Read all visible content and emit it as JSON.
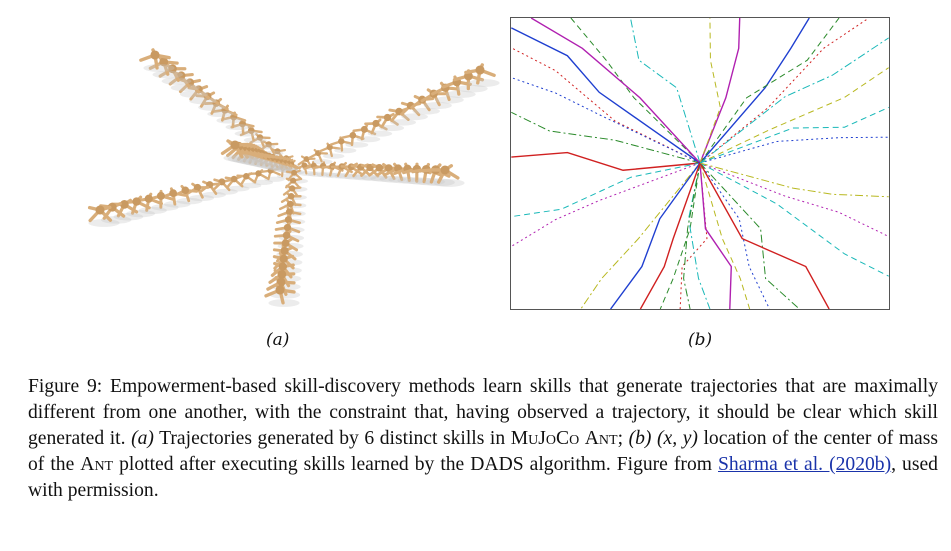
{
  "figure": {
    "label_a": "(a)",
    "label_b": "(b)",
    "caption": {
      "prefix": "Figure 9: Empowerment-based skill-discovery methods learn skills that generate trajectories that are maximally different from one another, with the constraint that, having observed a trajectory, it should be clear which skill generated it.",
      "part_a_label": "(a)",
      "part_a_text": "Trajectories generated by 6 distinct skills in",
      "mujoco": "MuJoCo",
      "ant": "Ant",
      "part_b_label": "(b)",
      "coord": "(x, y)",
      "part_b_text": "location of the center of mass of the",
      "ant2": "Ant",
      "part_b_rest": "plotted after executing skills learned by the DADS algorithm. Figure from",
      "citation": "Sharma et al. (2020b)",
      "suffix": ", used with permission."
    },
    "colors": {
      "ant_body": "#d9ae7a",
      "ant_shadow": "#c8c8c8",
      "traj": [
        "#1f3fd0",
        "#2a8a2a",
        "#d02020",
        "#18b8b8",
        "#b020b0",
        "#b8b820"
      ]
    }
  }
}
